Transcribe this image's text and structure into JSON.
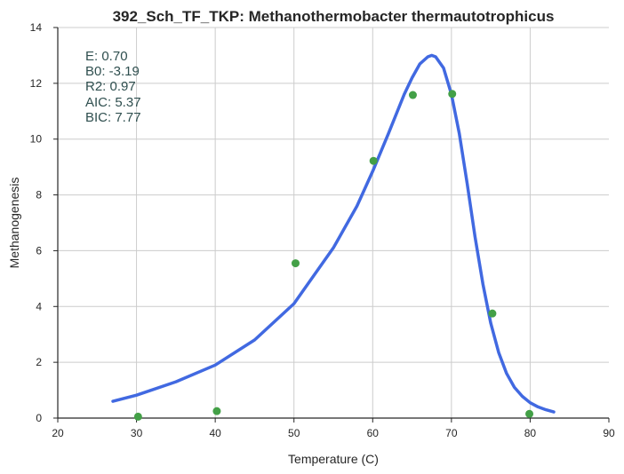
{
  "chart_data": {
    "type": "scatter",
    "title": "392_Sch_TF_TKP: Methanothermobacter thermautotrophicus",
    "xlabel": "Temperature (C)",
    "ylabel": "Methanogenesis",
    "xlim": [
      20,
      90
    ],
    "ylim": [
      0,
      14
    ],
    "xticks": [
      20,
      30,
      40,
      50,
      60,
      70,
      80,
      90
    ],
    "yticks": [
      0,
      2,
      4,
      6,
      8,
      10,
      12,
      14
    ],
    "grid": true,
    "colors": {
      "points": "#43a047",
      "fit": "#4169e1"
    },
    "points": {
      "x": [
        30.2,
        40.2,
        50.2,
        60.1,
        65.1,
        70.1,
        75.2,
        79.9
      ],
      "y": [
        0.05,
        0.25,
        5.55,
        9.22,
        11.58,
        11.62,
        3.75,
        0.15
      ]
    },
    "fit": {
      "x": [
        27,
        30,
        35,
        40,
        45,
        50,
        55,
        58,
        60,
        62,
        64,
        65,
        66,
        67,
        67.5,
        68,
        69,
        70,
        71,
        72,
        73,
        74,
        75,
        76,
        77,
        78,
        79,
        80,
        81,
        82,
        83
      ],
      "y": [
        0.6,
        0.82,
        1.3,
        1.9,
        2.8,
        4.1,
        6.1,
        7.6,
        8.85,
        10.2,
        11.6,
        12.2,
        12.7,
        12.95,
        13.0,
        12.95,
        12.55,
        11.6,
        10.2,
        8.4,
        6.5,
        4.8,
        3.4,
        2.35,
        1.6,
        1.1,
        0.78,
        0.55,
        0.4,
        0.3,
        0.22
      ]
    },
    "annotations": [
      "E:  0.70",
      "B0:  -3.19",
      "R2:  0.97",
      "AIC: 5.37",
      "BIC: 7.77"
    ]
  }
}
